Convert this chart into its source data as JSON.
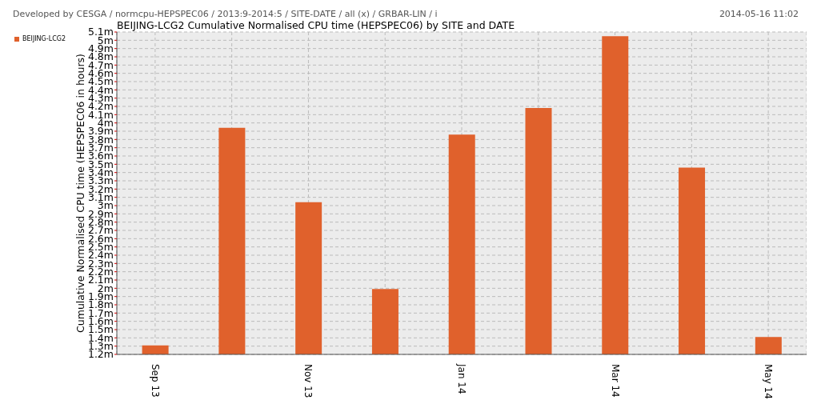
{
  "chart_data": {
    "type": "bar",
    "title": "BEIJING-LCG2  Cumulative Normalised CPU time (HEPSPEC06) by SITE and DATE",
    "ylabel": "Cumulative Normalised CPU time (HEPSPEC06 in hours)",
    "annotations": [
      "Developed by CESGA / normcpu-HEPSPEC06 / 2013:9-2014:5 / SITE-DATE / all (x) / GRBAR-LIN / i",
      "2014-05-16 11:02"
    ],
    "categories": [
      "Sep 13",
      null,
      "Nov 13",
      null,
      "Jan 14",
      null,
      "Mar 14",
      null,
      "May 14"
    ],
    "series": [
      {
        "name": "BEIJING-LCG2",
        "color": "#e0612c",
        "values": [
          1.31,
          3.94,
          3.04,
          1.99,
          3.86,
          4.18,
          5.05,
          3.46,
          1.41
        ]
      }
    ],
    "ylim": [
      1.2,
      5.1
    ],
    "yticks": [
      {
        "value": 1.2,
        "label": "1.2m"
      },
      {
        "value": 1.3,
        "label": "1.3m"
      },
      {
        "value": 1.4,
        "label": "1.4m"
      },
      {
        "value": 1.5,
        "label": "1.5m"
      },
      {
        "value": 1.6,
        "label": "1.6m"
      },
      {
        "value": 1.7,
        "label": "1.7m"
      },
      {
        "value": 1.8,
        "label": "1.8m"
      },
      {
        "value": 1.9,
        "label": "1.9m"
      },
      {
        "value": 2,
        "label": "2m"
      },
      {
        "value": 2.1,
        "label": "2.1m"
      },
      {
        "value": 2.2,
        "label": "2.2m"
      },
      {
        "value": 2.3,
        "label": "2.3m"
      },
      {
        "value": 2.4,
        "label": "2.4m"
      },
      {
        "value": 2.5,
        "label": "2.5m"
      },
      {
        "value": 2.6,
        "label": "2.6m"
      },
      {
        "value": 2.7,
        "label": "2.7m"
      },
      {
        "value": 2.8,
        "label": "2.8m"
      },
      {
        "value": 2.9,
        "label": "2.9m"
      },
      {
        "value": 3,
        "label": "3m"
      },
      {
        "value": 3.1,
        "label": "3.1m"
      },
      {
        "value": 3.2,
        "label": "3.2m"
      },
      {
        "value": 3.3,
        "label": "3.3m"
      },
      {
        "value": 3.4,
        "label": "3.4m"
      },
      {
        "value": 3.5,
        "label": "3.5m"
      },
      {
        "value": 3.6,
        "label": "3.6m"
      },
      {
        "value": 3.7,
        "label": "3.7m"
      },
      {
        "value": 3.8,
        "label": "3.8m"
      },
      {
        "value": 3.9,
        "label": "3.9m"
      },
      {
        "value": 4,
        "label": "4m"
      },
      {
        "value": 4.1,
        "label": "4.1m"
      },
      {
        "value": 4.2,
        "label": "4.2m"
      },
      {
        "value": 4.3,
        "label": "4.3m"
      },
      {
        "value": 4.4,
        "label": "4.4m"
      },
      {
        "value": 4.5,
        "label": "4.5m"
      },
      {
        "value": 4.6,
        "label": "4.6m"
      },
      {
        "value": 4.7,
        "label": "4.7m"
      },
      {
        "value": 4.8,
        "label": "4.8m"
      },
      {
        "value": 4.9,
        "label": "4.9m"
      },
      {
        "value": 5,
        "label": "5m"
      },
      {
        "value": 5.1,
        "label": "5.1m"
      }
    ],
    "grid": true,
    "legend": "top left"
  }
}
